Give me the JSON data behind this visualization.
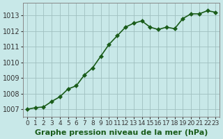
{
  "x": [
    0,
    1,
    2,
    3,
    4,
    5,
    6,
    7,
    8,
    9,
    10,
    11,
    12,
    13,
    14,
    15,
    16,
    17,
    18,
    19,
    20,
    21,
    22,
    23
  ],
  "y": [
    1007.0,
    1007.1,
    1007.15,
    1007.5,
    1007.8,
    1008.3,
    1008.5,
    1009.2,
    1009.65,
    1010.4,
    1011.15,
    1011.7,
    1012.25,
    1012.5,
    1012.65,
    1012.25,
    1012.1,
    1012.25,
    1012.15,
    1012.8,
    1013.1,
    1013.1,
    1013.3,
    1013.2
  ],
  "line_color": "#1a5c1a",
  "marker": "D",
  "marker_size": 3,
  "line_width": 1.2,
  "bg_color": "#c8e8e8",
  "grid_color": "#a0c0c0",
  "xlabel": "Graphe pression niveau de la mer (hPa)",
  "xlabel_color": "#1a5c1a",
  "xlabel_fontsize": 8,
  "ylabel_fontsize": 7,
  "tick_fontsize": 6.5,
  "ylim": [
    1006.5,
    1013.8
  ],
  "yticks": [
    1007,
    1008,
    1009,
    1010,
    1011,
    1012,
    1013
  ],
  "xlim": [
    -0.5,
    23.5
  ],
  "xticks": [
    0,
    1,
    2,
    3,
    4,
    5,
    6,
    7,
    8,
    9,
    10,
    11,
    12,
    13,
    14,
    15,
    16,
    17,
    18,
    19,
    20,
    21,
    22,
    23
  ]
}
